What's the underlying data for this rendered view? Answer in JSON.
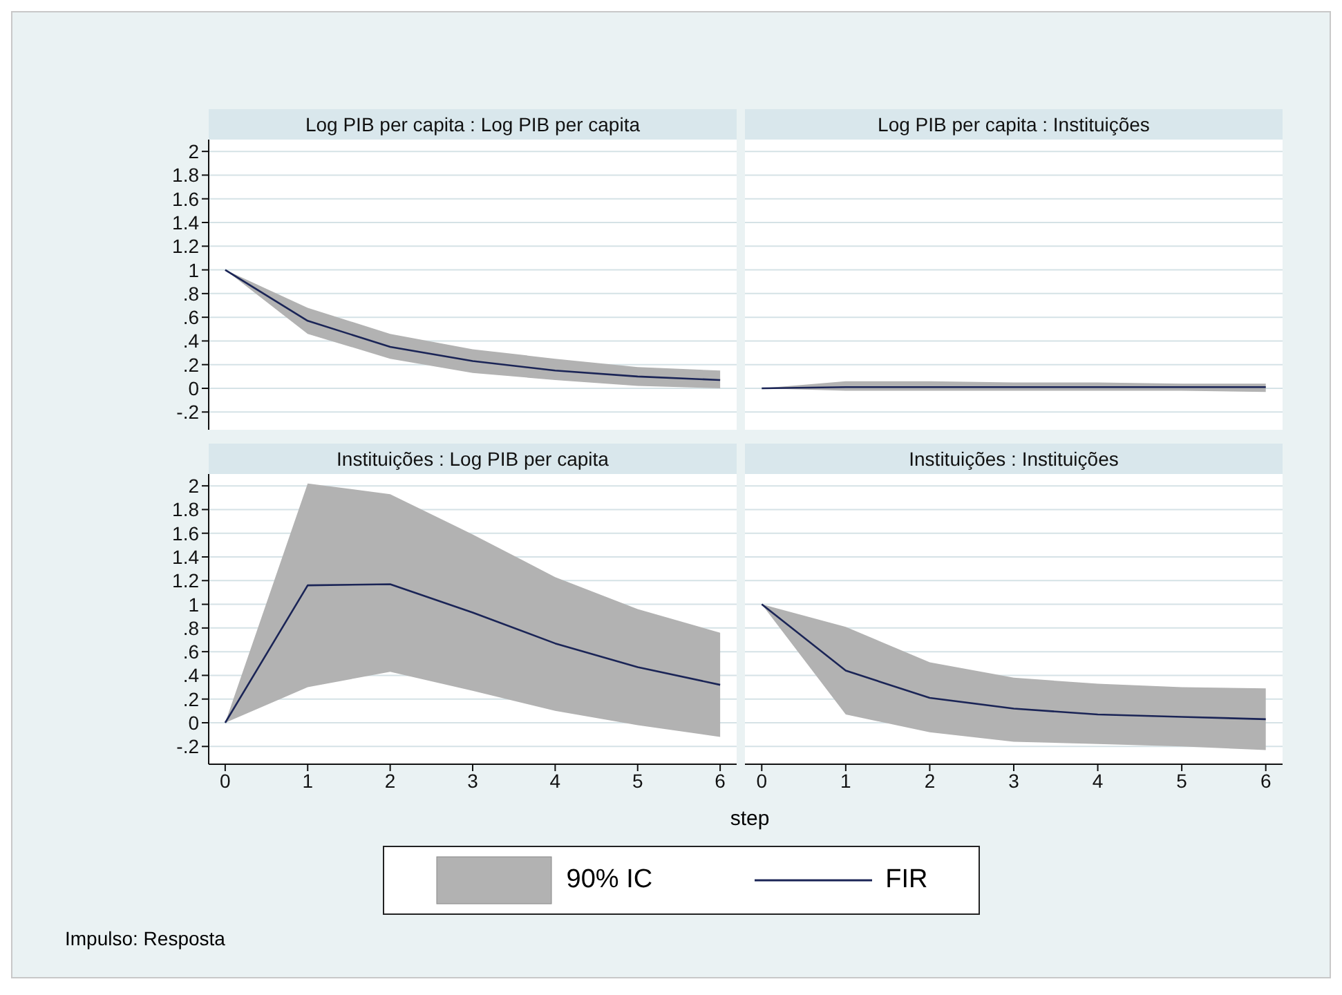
{
  "chart_data": [
    {
      "type": "line",
      "title": "Log PIB per capita : Log PIB per capita",
      "x": [
        0,
        1,
        2,
        3,
        4,
        5,
        6
      ],
      "xlim": [
        -0.2,
        6.2
      ],
      "ylim": [
        -0.35,
        2.1
      ],
      "yticks": [
        {
          "value": -0.2,
          "label": "-.2"
        },
        0,
        {
          "value": 0.2,
          "label": ".2"
        },
        {
          "value": 0.4,
          "label": ".4"
        },
        {
          "value": 0.6,
          "label": ".6"
        },
        {
          "value": 0.8,
          "label": ".8"
        },
        1,
        1.2,
        1.4,
        1.6,
        1.8,
        2
      ],
      "xticks": [
        0,
        1,
        2,
        3,
        4,
        5,
        6
      ],
      "tick_labels": "y",
      "grid": "y",
      "series": [
        {
          "color": "#1a2456",
          "values": [
            1,
            0.57,
            0.35,
            0.23,
            0.15,
            0.1,
            0.07
          ],
          "lower": [
            1,
            0.46,
            0.25,
            0.13,
            0.07,
            0.02,
            0
          ],
          "upper": [
            1,
            0.68,
            0.46,
            0.33,
            0.25,
            0.18,
            0.15
          ]
        }
      ]
    },
    {
      "type": "line",
      "title": "Log PIB per capita : Instituições",
      "x": [
        0,
        1,
        2,
        3,
        4,
        5,
        6
      ],
      "xlim": [
        -0.2,
        6.2
      ],
      "ylim": [
        -0.35,
        2.1
      ],
      "yticks": [
        -0.2,
        0,
        0.2,
        0.4,
        0.6,
        0.8,
        1,
        1.2,
        1.4,
        1.6,
        1.8,
        2
      ],
      "xticks": [
        0,
        1,
        2,
        3,
        4,
        5,
        6
      ],
      "tick_labels": false,
      "grid": "y",
      "series": [
        {
          "color": "#1a2456",
          "values": [
            0,
            0.01,
            0.01,
            0.01,
            0.01,
            0.01,
            0.01
          ],
          "lower": [
            0,
            -0.02,
            -0.02,
            -0.02,
            -0.02,
            -0.02,
            -0.03
          ],
          "upper": [
            0,
            0.06,
            0.06,
            0.05,
            0.05,
            0.04,
            0.04
          ]
        }
      ]
    },
    {
      "type": "line",
      "title": "Instituições : Log PIB per capita",
      "xlabel": "step",
      "legend": "bottom",
      "annotations": [
        "90% IC",
        "Impulso: Resposta"
      ],
      "x": [
        0,
        1,
        2,
        3,
        4,
        5,
        6
      ],
      "xlim": [
        -0.2,
        6.2
      ],
      "ylim": [
        -0.35,
        2.1
      ],
      "yticks": [
        {
          "value": -0.2,
          "label": "-.2"
        },
        0,
        {
          "value": 0.2,
          "label": ".2"
        },
        {
          "value": 0.4,
          "label": ".4"
        },
        {
          "value": 0.6,
          "label": ".6"
        },
        {
          "value": 0.8,
          "label": ".8"
        },
        1,
        1.2,
        1.4,
        1.6,
        1.8,
        2
      ],
      "xticks": [
        0,
        1,
        2,
        3,
        4,
        5,
        6
      ],
      "grid": "y",
      "series": [
        {
          "name": "FIR",
          "color": "#1a2456",
          "values": [
            0,
            1.16,
            1.17,
            0.93,
            0.67,
            0.47,
            0.32
          ],
          "lower": [
            0,
            0.3,
            0.43,
            0.27,
            0.1,
            -0.02,
            -0.12
          ],
          "upper": [
            0,
            2.02,
            1.93,
            1.59,
            1.23,
            0.96,
            0.76
          ]
        }
      ]
    },
    {
      "type": "line",
      "title": "Instituições : Instituições",
      "x": [
        0,
        1,
        2,
        3,
        4,
        5,
        6
      ],
      "xlim": [
        -0.2,
        6.2
      ],
      "ylim": [
        -0.35,
        2.1
      ],
      "yticks": [
        -0.2,
        0,
        0.2,
        0.4,
        0.6,
        0.8,
        1,
        1.2,
        1.4,
        1.6,
        1.8,
        2
      ],
      "xticks": [
        0,
        1,
        2,
        3,
        4,
        5,
        6
      ],
      "tick_labels": "x",
      "grid": "y",
      "series": [
        {
          "color": "#1a2456",
          "values": [
            1,
            0.44,
            0.21,
            0.12,
            0.07,
            0.05,
            0.03
          ],
          "lower": [
            1,
            0.07,
            -0.08,
            -0.16,
            -0.18,
            -0.2,
            -0.23
          ],
          "upper": [
            1,
            0.81,
            0.51,
            0.38,
            0.33,
            0.3,
            0.29
          ]
        }
      ]
    }
  ]
}
